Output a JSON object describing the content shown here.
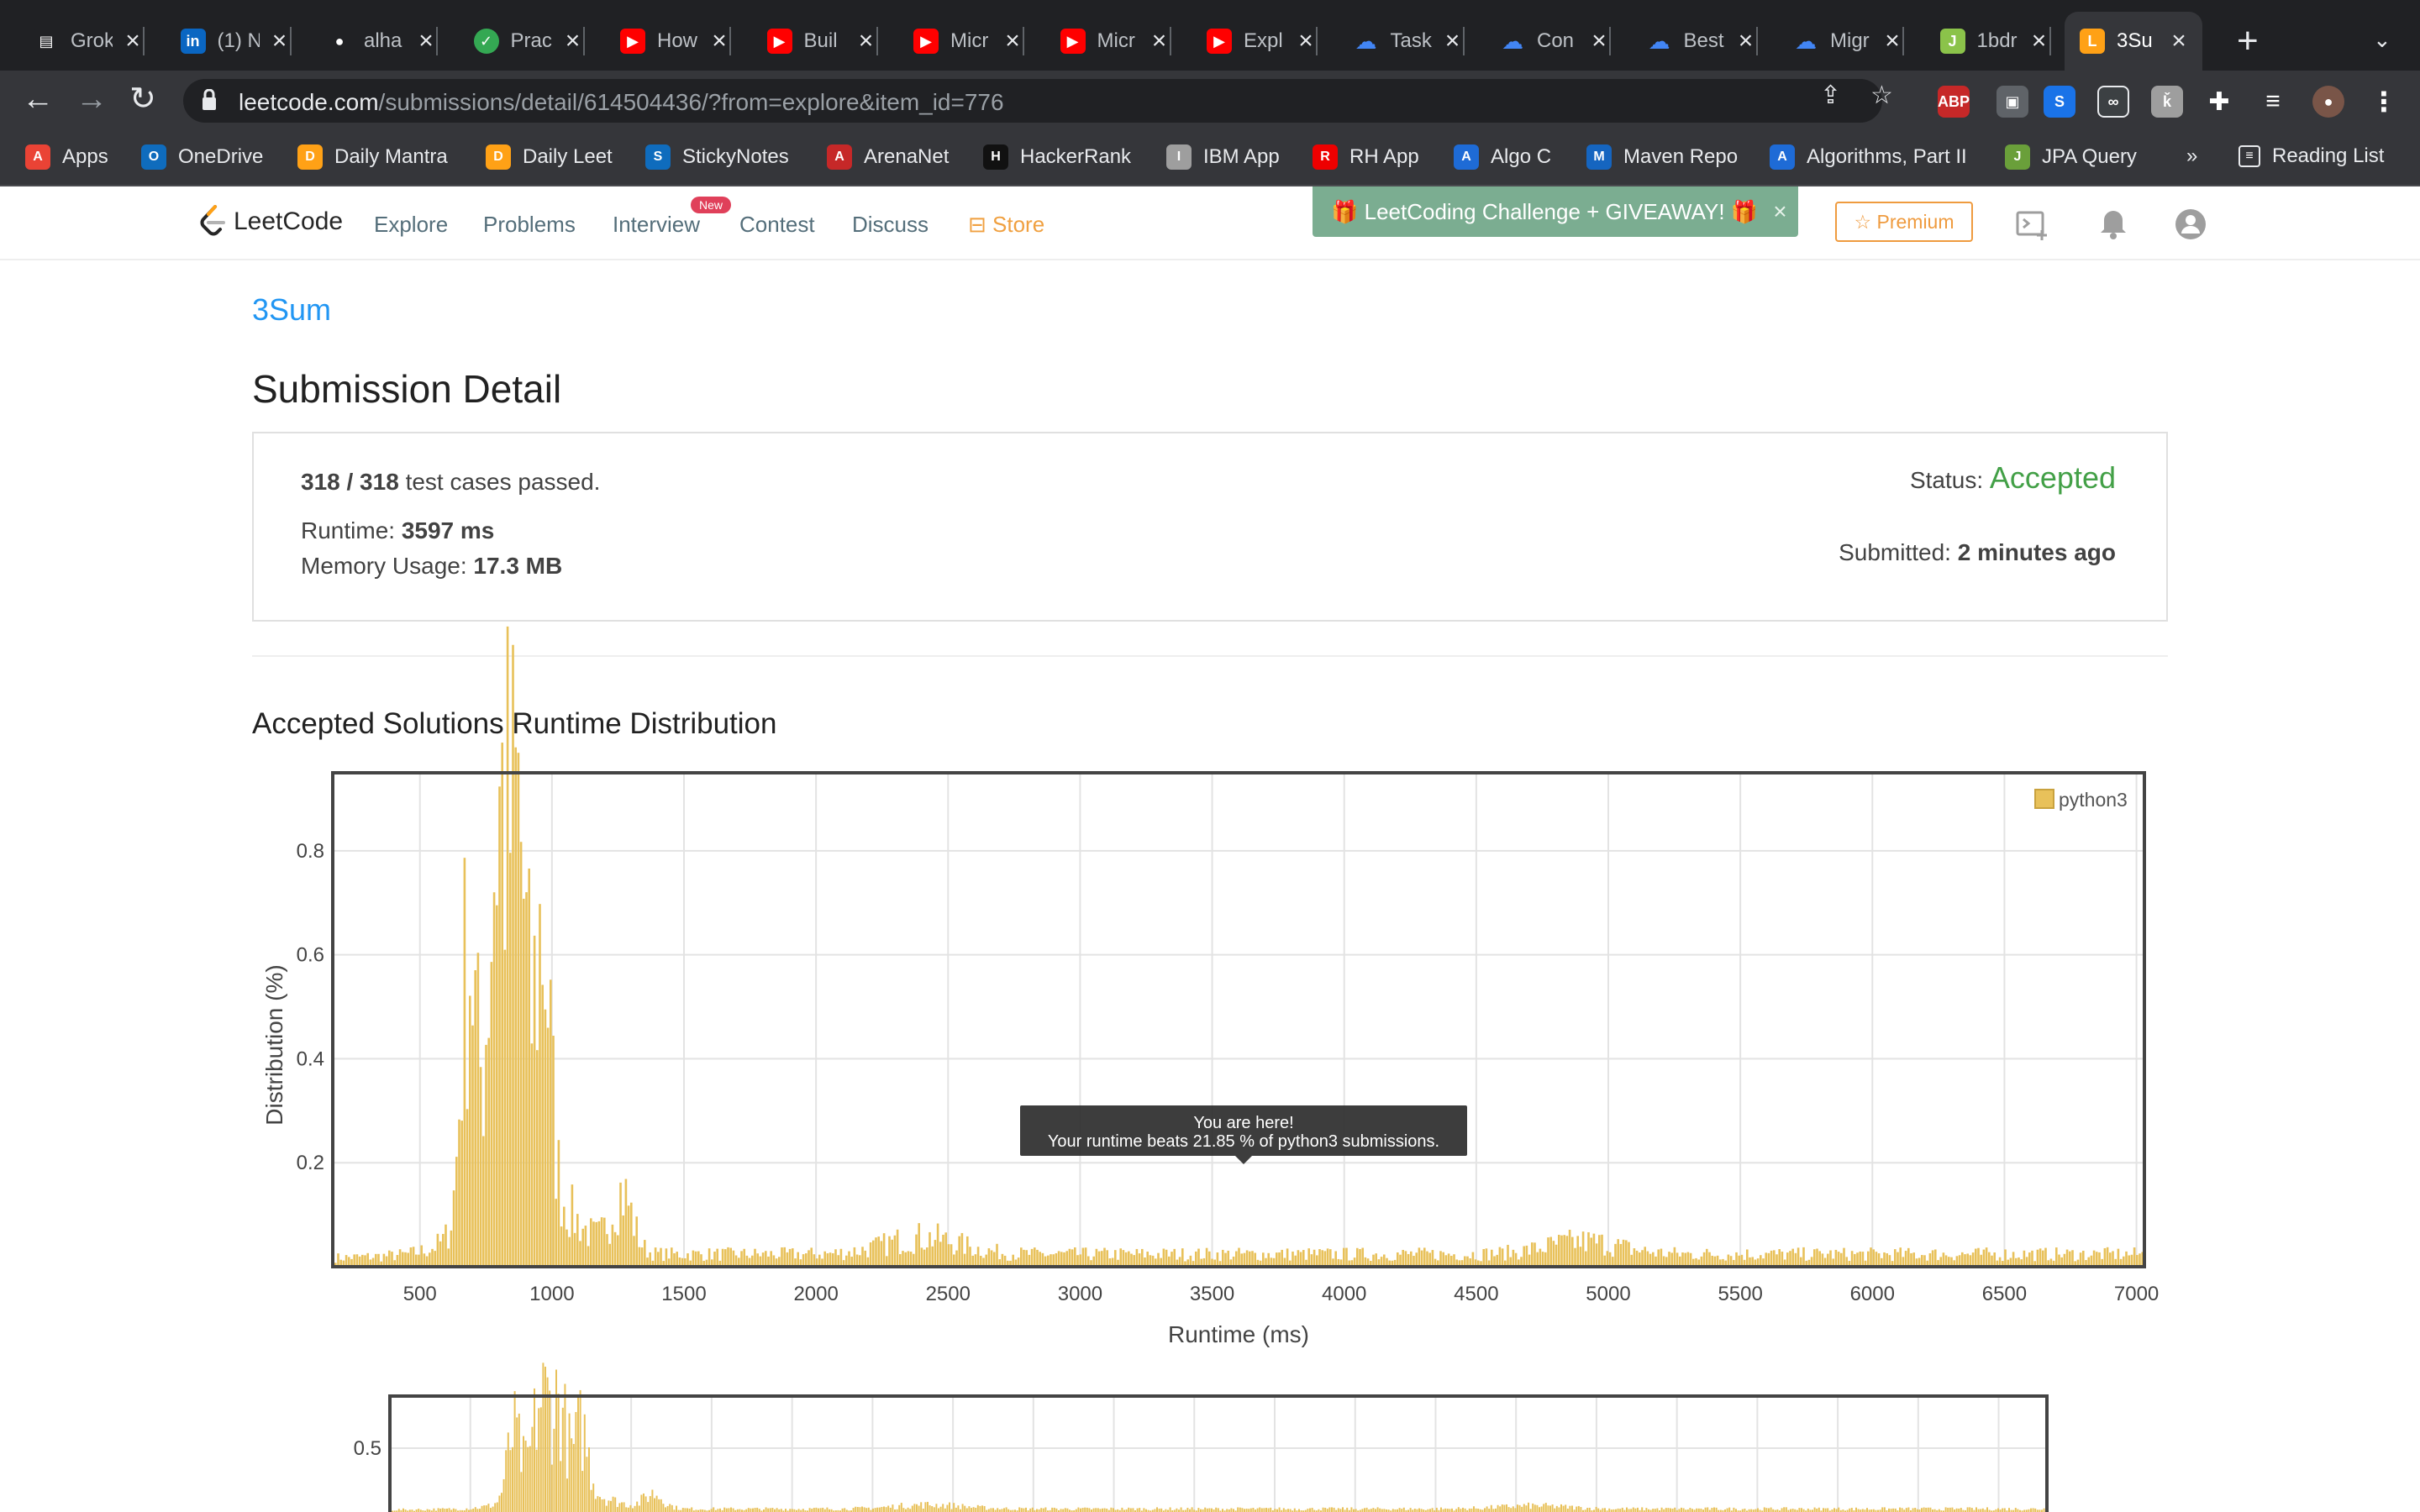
{
  "browser": {
    "tabs": [
      {
        "title": "Grok",
        "icon": "grok-icon",
        "color": "#5f6368"
      },
      {
        "title": "(1) N",
        "icon": "linkedin-icon",
        "color": "#0a66c2"
      },
      {
        "title": "alha",
        "icon": "github-icon",
        "color": "#ffffff"
      },
      {
        "title": "Prac",
        "icon": "check-icon",
        "color": "#34a853"
      },
      {
        "title": "How",
        "icon": "youtube-icon",
        "color": "#ff0000"
      },
      {
        "title": "Buil",
        "icon": "youtube-icon",
        "color": "#ff0000"
      },
      {
        "title": "Micr",
        "icon": "youtube-icon",
        "color": "#ff0000"
      },
      {
        "title": "Micr",
        "icon": "youtube-icon",
        "color": "#ff0000"
      },
      {
        "title": "Expl",
        "icon": "youtube-icon",
        "color": "#ff0000"
      },
      {
        "title": "Task",
        "icon": "google-cloud-icon",
        "color": "#4285f4"
      },
      {
        "title": "Con",
        "icon": "google-cloud-icon",
        "color": "#4285f4"
      },
      {
        "title": "Best",
        "icon": "google-cloud-icon",
        "color": "#4285f4"
      },
      {
        "title": "Migr",
        "icon": "google-cloud-icon",
        "color": "#4285f4"
      },
      {
        "title": "1bdr",
        "icon": "jira-icon",
        "color": "#8bc34a"
      },
      {
        "title": "3Su",
        "icon": "leetcode-icon",
        "color": "#ffa116",
        "active": true
      }
    ],
    "url_domain": "leetcode.com",
    "url_path": "/submissions/detail/614504436/?from=explore&item_id=776",
    "bookmarks": [
      {
        "label": "Apps",
        "color": "#ea4335"
      },
      {
        "label": "OneDrive",
        "color": "#0f6cbd"
      },
      {
        "label": "Daily Mantra",
        "color": "#ffa116"
      },
      {
        "label": "Daily Leet",
        "color": "#ffa116"
      },
      {
        "label": "StickyNotes",
        "color": "#0f6cbd"
      },
      {
        "label": "ArenaNet",
        "color": "#c62828"
      },
      {
        "label": "HackerRank",
        "color": "#111111"
      },
      {
        "label": "IBM App",
        "color": "#9e9e9e"
      },
      {
        "label": "RH App",
        "color": "#e00"
      },
      {
        "label": "Algo C",
        "color": "#1e6bd6"
      },
      {
        "label": "Maven Repo",
        "color": "#1565c0"
      },
      {
        "label": "Algorithms, Part II",
        "color": "#1e6bd6"
      },
      {
        "label": "JPA Query",
        "color": "#6a9f3a"
      }
    ],
    "overflow": "»",
    "reading_list": "Reading List"
  },
  "leetcode_nav": {
    "logo_text": "LeetCode",
    "links": [
      "Explore",
      "Problems",
      "Interview",
      "Contest",
      "Discuss"
    ],
    "new_badge": "New",
    "store": "Store",
    "banner": "LeetCoding Challenge + GIVEAWAY!",
    "premium": "Premium"
  },
  "submission": {
    "problem_link": "3Sum",
    "page_title": "Submission Detail",
    "passed": "318 / 318",
    "passed_suffix": "test cases passed.",
    "runtime_label": "Runtime:",
    "runtime_value": "3597 ms",
    "memory_label": "Memory Usage:",
    "memory_value": "17.3 MB",
    "status_label": "Status:",
    "status_value": "Accepted",
    "submitted_label": "Submitted:",
    "submitted_value": "2 minutes ago",
    "status_color": "#43a047"
  },
  "distribution_title": "Accepted Solutions Runtime Distribution",
  "chart_data": [
    {
      "type": "bar",
      "xlabel": "Runtime (ms)",
      "ylabel": "Distribution (%)",
      "legend": "python3",
      "legend_position": "top-right",
      "bar_color": "#e8c15a",
      "xlim": [
        170,
        7030
      ],
      "ylim": [
        0,
        0.95
      ],
      "x_ticks": [
        500,
        1000,
        1500,
        2000,
        2500,
        3000,
        3500,
        4000,
        4500,
        5000,
        5500,
        6000,
        6500,
        7000
      ],
      "y_ticks": [
        0.2,
        0.4,
        0.6,
        0.8
      ],
      "grid": true,
      "peaks": [
        {
          "x": 680,
          "y": 0.68
        },
        {
          "x": 770,
          "y": 0.5
        },
        {
          "x": 810,
          "y": 0.67
        },
        {
          "x": 870,
          "y": 0.78
        },
        {
          "x": 960,
          "y": 0.62
        },
        {
          "x": 1260,
          "y": 0.17
        },
        {
          "x": 2400,
          "y": 0.07
        },
        {
          "x": 4900,
          "y": 0.06
        }
      ],
      "baseline": 0.03,
      "tooltip_line1": "You are here!",
      "tooltip_line2": "Your runtime beats 21.85 % of python3 submissions.",
      "marker_x": 3597
    },
    {
      "type": "bar",
      "role": "range-overview",
      "y_ticks": [
        0.5
      ],
      "bar_color": "#e8c15a"
    }
  ]
}
